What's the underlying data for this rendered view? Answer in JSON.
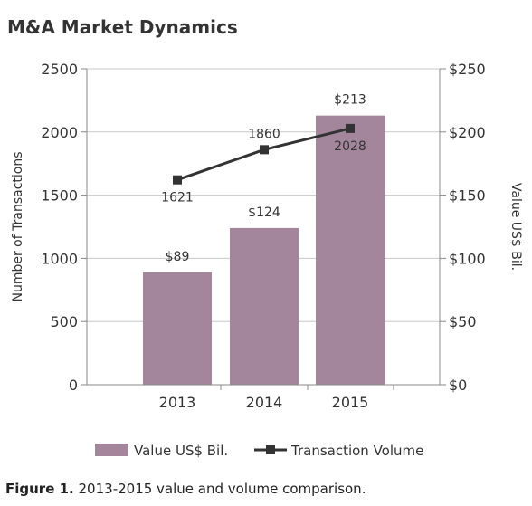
{
  "title": "M&A Market Dynamics",
  "caption": {
    "label": "Figure 1.",
    "text": "2013-2015 value and volume comparison."
  },
  "chart_data": {
    "type": "bar",
    "categories": [
      "2013",
      "2014",
      "2015"
    ],
    "series": [
      {
        "name": "Value US$ Bil.",
        "type": "bar",
        "axis": "right",
        "values": [
          89,
          124,
          213
        ],
        "labels": [
          "$89",
          "$124",
          "$213"
        ],
        "color": "#a3869b"
      },
      {
        "name": "Transaction Volume",
        "type": "line",
        "axis": "left",
        "values": [
          1621,
          1860,
          2028
        ],
        "labels": [
          "1621",
          "1860",
          "2028"
        ],
        "color": "#333333"
      }
    ],
    "left_axis": {
      "label": "Number of Transactions",
      "range": [
        0,
        2500
      ],
      "ticks": [
        "0",
        "500",
        "1000",
        "1500",
        "2000",
        "2500"
      ]
    },
    "right_axis": {
      "label": "Value US$ Bil.",
      "range": [
        0,
        250
      ],
      "ticks": [
        "$0",
        "$50",
        "$100",
        "$150",
        "$200",
        "$250"
      ]
    },
    "grid": true,
    "legend_position": "bottom"
  }
}
